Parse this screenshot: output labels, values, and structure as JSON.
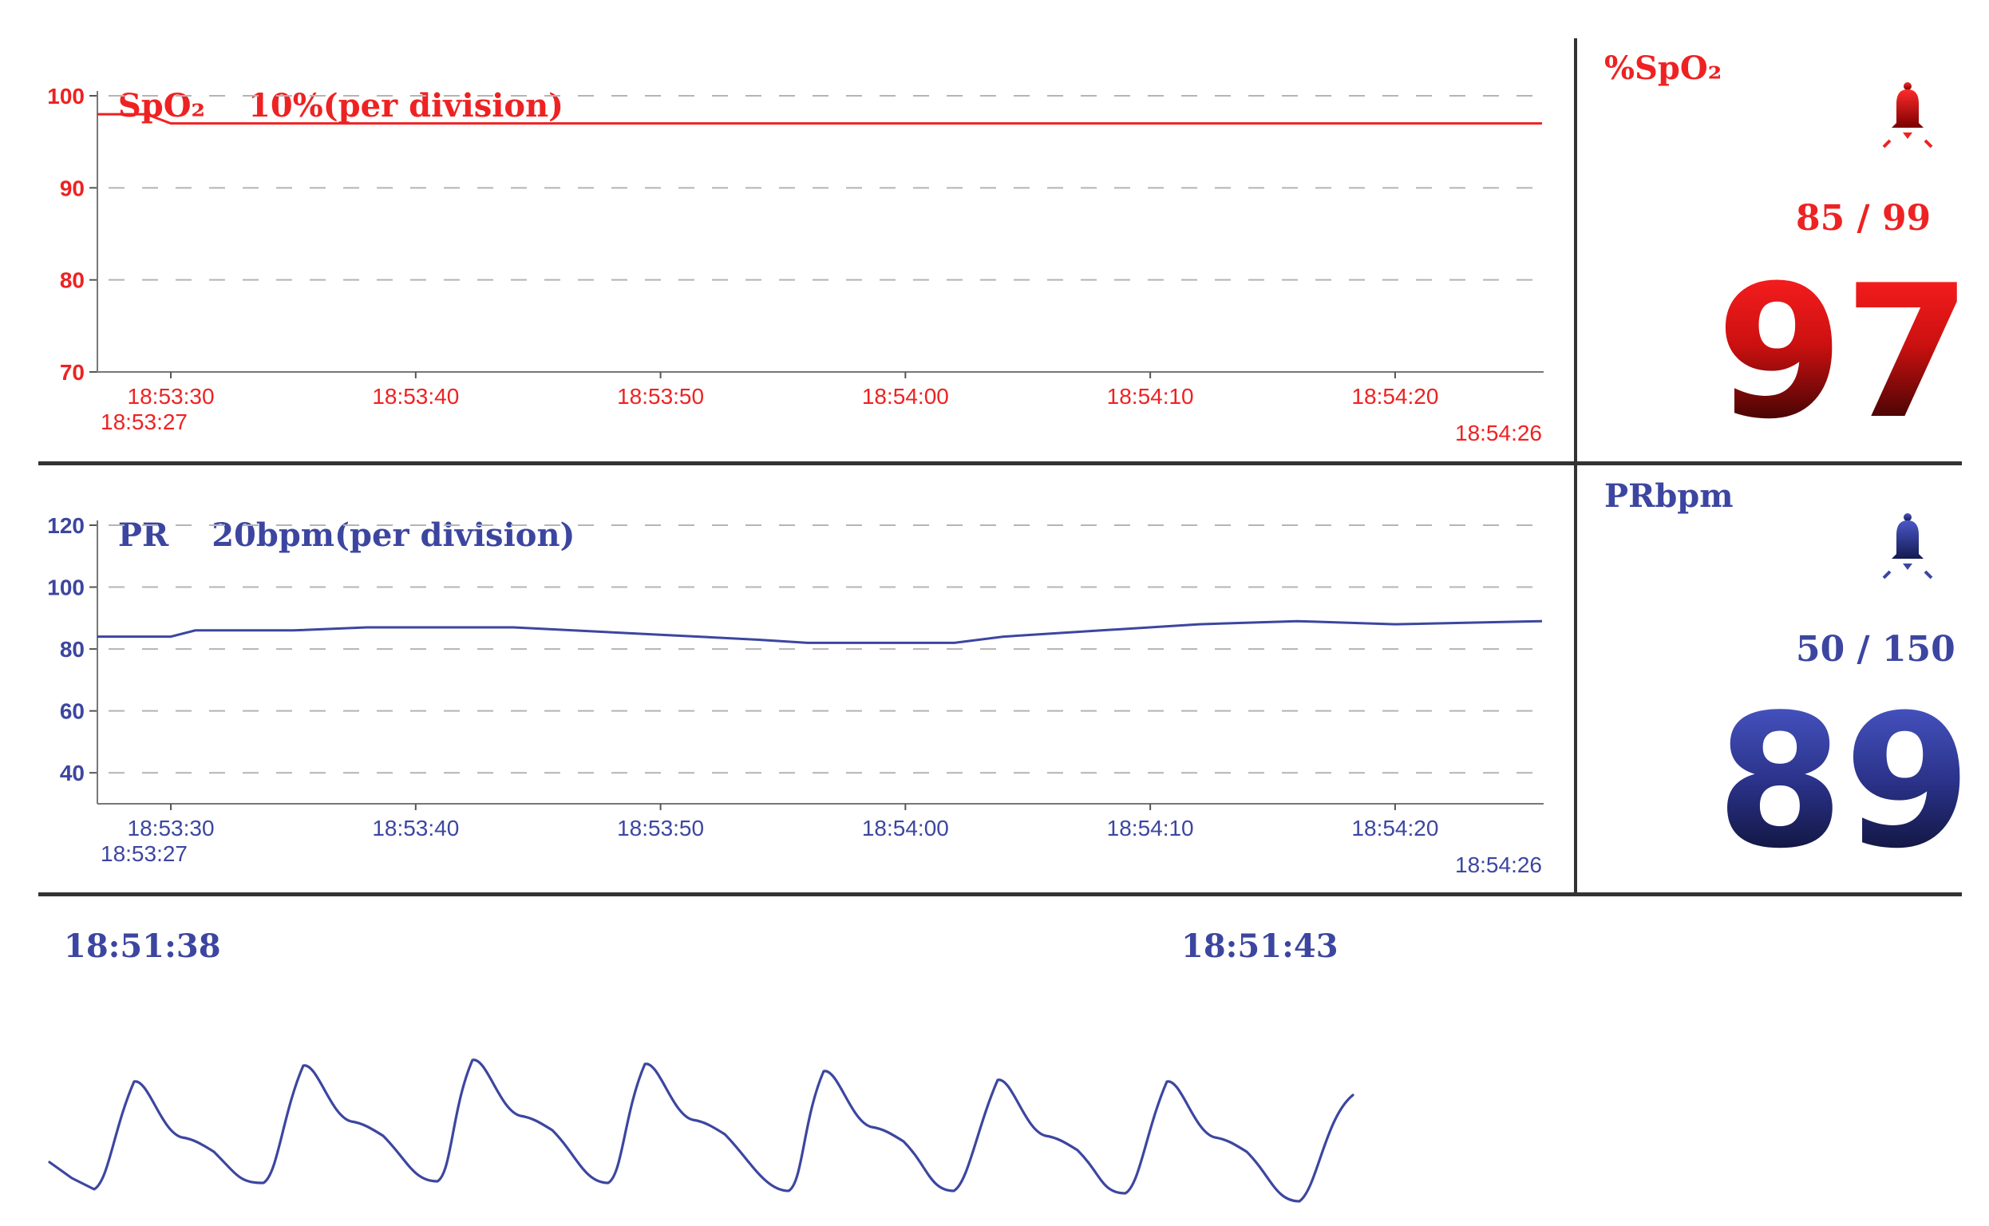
{
  "spo2_trend": {
    "title": "SpO₂",
    "scale": "10%(per division)",
    "y_ticks": [
      "100",
      "90",
      "80",
      "70"
    ],
    "x_ticks": [
      "18:53:30",
      "18:53:40",
      "18:53:50",
      "18:54:00",
      "18:54:10",
      "18:54:20"
    ],
    "start_time": "18:53:27",
    "end_time": "18:54:26",
    "color": "#ee2222"
  },
  "pr_trend": {
    "title": "PR",
    "scale": "20bpm(per division)",
    "y_ticks": [
      "120",
      "100",
      "80",
      "60",
      "40"
    ],
    "x_ticks": [
      "18:53:30",
      "18:53:40",
      "18:53:50",
      "18:54:00",
      "18:54:10",
      "18:54:20"
    ],
    "start_time": "18:53:27",
    "end_time": "18:54:26",
    "color": "#3c46a0"
  },
  "spo2_panel": {
    "label": "%SpO₂",
    "alarm_icon": "bell-icon",
    "limits": "85 / 99",
    "value": "97",
    "color": "#ee2222"
  },
  "pr_panel": {
    "label": "PRbpm",
    "alarm_icon": "bell-icon",
    "limits": "50 / 150",
    "value": "89",
    "color": "#3c46a0"
  },
  "pleth": {
    "start_time": "18:51:38",
    "end_time": "18:51:43",
    "color": "#3c46a0"
  },
  "chart_data": [
    {
      "type": "line",
      "title": "SpO₂ 10%(per division)",
      "xlabel": "",
      "ylabel": "",
      "x_range": [
        "18:53:27",
        "18:54:26"
      ],
      "ylim": [
        70,
        100
      ],
      "grid": true,
      "series": [
        {
          "name": "SpO₂",
          "x": [
            "18:53:27",
            "18:53:29",
            "18:53:30",
            "18:53:40",
            "18:53:50",
            "18:54:00",
            "18:54:10",
            "18:54:20",
            "18:54:26"
          ],
          "values": [
            98,
            98,
            97,
            97,
            97,
            97,
            97,
            97,
            97
          ]
        }
      ]
    },
    {
      "type": "line",
      "title": "PR 20bpm(per division)",
      "xlabel": "",
      "ylabel": "",
      "x_range": [
        "18:53:27",
        "18:54:26"
      ],
      "ylim": [
        30,
        120
      ],
      "grid": true,
      "series": [
        {
          "name": "PR",
          "x": [
            "18:53:27",
            "18:53:30",
            "18:53:31",
            "18:53:35",
            "18:53:38",
            "18:53:44",
            "18:53:49",
            "18:53:54",
            "18:53:56",
            "18:54:02",
            "18:54:04",
            "18:54:08",
            "18:54:12",
            "18:54:16",
            "18:54:20",
            "18:54:26"
          ],
          "values": [
            84,
            84,
            86,
            86,
            87,
            87,
            85,
            83,
            82,
            82,
            84,
            86,
            88,
            89,
            88,
            89
          ]
        }
      ]
    }
  ]
}
